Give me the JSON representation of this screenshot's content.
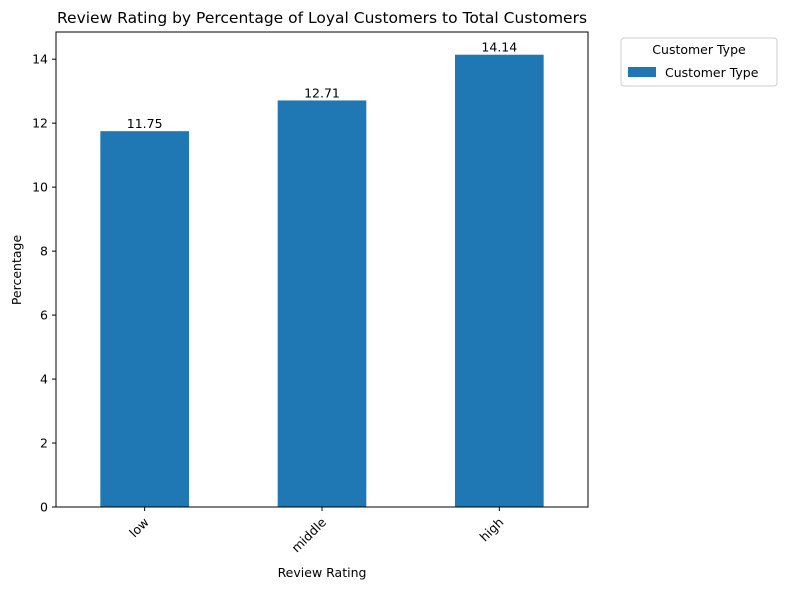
{
  "chart_data": {
    "type": "bar",
    "title": "Review Rating by Percentage of Loyal Customers to Total Customers",
    "xlabel": "Review Rating",
    "ylabel": "Percentage",
    "categories": [
      "low",
      "middle",
      "high"
    ],
    "series": [
      {
        "name": "Customer Type",
        "values": [
          11.75,
          12.71,
          14.14
        ],
        "color": "#1f77b4"
      }
    ],
    "data_labels": [
      "11.75",
      "12.71",
      "14.14"
    ],
    "ylim": [
      0,
      14.85
    ],
    "yticks": [
      0,
      2,
      4,
      6,
      8,
      10,
      12,
      14
    ],
    "grid": false,
    "legend": {
      "title": "Customer Type",
      "placement": "outside-top-right"
    },
    "xtick_rotation": 45
  }
}
